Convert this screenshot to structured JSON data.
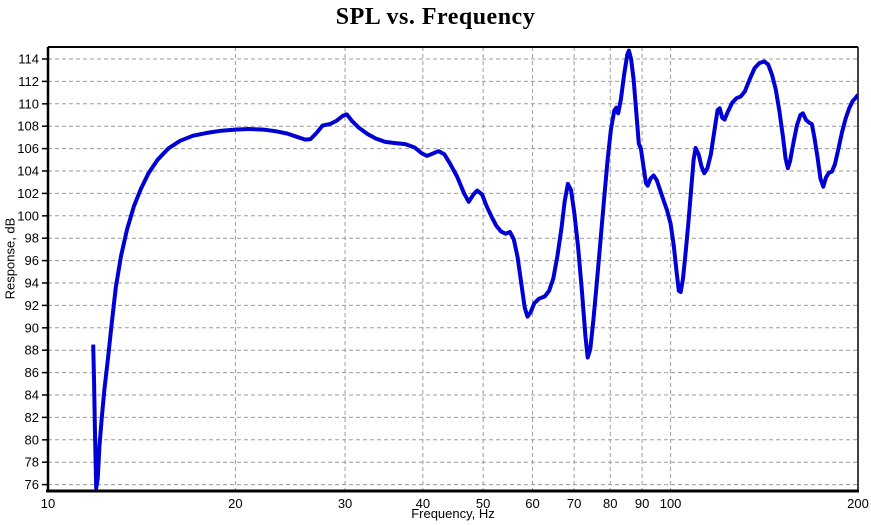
{
  "chart_data": {
    "type": "line",
    "title": "SPL vs. Frequency",
    "xlabel": "Frequency, Hz",
    "ylabel": "Response, dB",
    "x_scale": "log",
    "xlim": [
      10,
      200
    ],
    "ylim": [
      75.5,
      115.1
    ],
    "grid": "dashed",
    "grid_color": "#9c9c9c",
    "axis_color": "#000000",
    "background_color": "#ffffff",
    "legend": "none",
    "x_ticks": [
      10,
      20,
      30,
      40,
      50,
      60,
      70,
      80,
      90,
      100,
      200
    ],
    "x_tick_labels": [
      "10",
      "20",
      "30",
      "40",
      "50",
      "60",
      "70",
      "80",
      "90",
      "100",
      "200"
    ],
    "x_gridlines": [
      20,
      30,
      40,
      50,
      60,
      70,
      80,
      90,
      100,
      200
    ],
    "y_ticks": [
      76,
      78,
      80,
      82,
      84,
      86,
      88,
      90,
      92,
      94,
      96,
      98,
      100,
      102,
      104,
      106,
      108,
      110,
      112,
      114
    ],
    "series": [
      {
        "name": "SPL",
        "color": "#0000d4",
        "points": [
          [
            11.82,
            88.5
          ],
          [
            11.86,
            85.0
          ],
          [
            11.9,
            80.5
          ],
          [
            11.95,
            75.7
          ],
          [
            12.02,
            76.5
          ],
          [
            12.1,
            79.5
          ],
          [
            12.2,
            82.0
          ],
          [
            12.32,
            84.5
          ],
          [
            12.48,
            87.2
          ],
          [
            12.65,
            90.3
          ],
          [
            12.85,
            93.6
          ],
          [
            13.1,
            96.4
          ],
          [
            13.4,
            98.8
          ],
          [
            13.75,
            100.9
          ],
          [
            14.1,
            102.4
          ],
          [
            14.5,
            103.8
          ],
          [
            15.0,
            105.0
          ],
          [
            15.6,
            106.0
          ],
          [
            16.3,
            106.7
          ],
          [
            17.1,
            107.15
          ],
          [
            18.0,
            107.4
          ],
          [
            19.0,
            107.6
          ],
          [
            20.0,
            107.7
          ],
          [
            21.0,
            107.75
          ],
          [
            22.2,
            107.7
          ],
          [
            23.2,
            107.55
          ],
          [
            24.2,
            107.35
          ],
          [
            25.1,
            107.05
          ],
          [
            25.9,
            106.8
          ],
          [
            26.4,
            106.85
          ],
          [
            27.0,
            107.4
          ],
          [
            27.6,
            108.05
          ],
          [
            28.4,
            108.2
          ],
          [
            29.1,
            108.5
          ],
          [
            29.8,
            108.95
          ],
          [
            30.2,
            109.05
          ],
          [
            30.8,
            108.45
          ],
          [
            31.6,
            107.85
          ],
          [
            32.6,
            107.3
          ],
          [
            33.6,
            106.9
          ],
          [
            34.8,
            106.6
          ],
          [
            36.0,
            106.5
          ],
          [
            37.5,
            106.4
          ],
          [
            38.8,
            106.1
          ],
          [
            39.8,
            105.6
          ],
          [
            40.6,
            105.35
          ],
          [
            41.5,
            105.55
          ],
          [
            42.4,
            105.78
          ],
          [
            43.3,
            105.5
          ],
          [
            44.2,
            104.7
          ],
          [
            45.4,
            103.5
          ],
          [
            46.6,
            102.0
          ],
          [
            47.4,
            101.25
          ],
          [
            48.3,
            101.95
          ],
          [
            48.9,
            102.25
          ],
          [
            49.8,
            101.9
          ],
          [
            50.7,
            100.8
          ],
          [
            51.6,
            99.9
          ],
          [
            52.5,
            99.1
          ],
          [
            53.4,
            98.6
          ],
          [
            54.3,
            98.4
          ],
          [
            55.2,
            98.55
          ],
          [
            56.0,
            97.9
          ],
          [
            56.8,
            96.3
          ],
          [
            57.6,
            93.9
          ],
          [
            58.3,
            91.8
          ],
          [
            58.9,
            91.0
          ],
          [
            59.6,
            91.4
          ],
          [
            60.4,
            92.2
          ],
          [
            61.5,
            92.6
          ],
          [
            62.8,
            92.8
          ],
          [
            63.8,
            93.3
          ],
          [
            64.8,
            94.4
          ],
          [
            65.8,
            96.4
          ],
          [
            66.8,
            98.9
          ],
          [
            67.6,
            101.3
          ],
          [
            68.4,
            102.85
          ],
          [
            69.2,
            102.3
          ],
          [
            70.0,
            100.4
          ],
          [
            71.0,
            97.3
          ],
          [
            72.0,
            93.4
          ],
          [
            73.0,
            89.2
          ],
          [
            73.6,
            87.35
          ],
          [
            74.3,
            88.1
          ],
          [
            75.2,
            90.8
          ],
          [
            76.2,
            94.3
          ],
          [
            77.2,
            97.9
          ],
          [
            78.2,
            101.5
          ],
          [
            79.2,
            104.9
          ],
          [
            80.2,
            107.7
          ],
          [
            81.2,
            109.4
          ],
          [
            81.8,
            109.65
          ],
          [
            82.4,
            109.15
          ],
          [
            83.2,
            110.4
          ],
          [
            84.2,
            112.6
          ],
          [
            85.2,
            114.4
          ],
          [
            85.7,
            114.75
          ],
          [
            86.4,
            114.0
          ],
          [
            87.2,
            112.2
          ],
          [
            88.2,
            108.9
          ],
          [
            88.9,
            106.45
          ],
          [
            89.6,
            106.0
          ],
          [
            90.4,
            104.5
          ],
          [
            91.3,
            102.9
          ],
          [
            91.9,
            102.7
          ],
          [
            92.9,
            103.35
          ],
          [
            93.9,
            103.6
          ],
          [
            95.0,
            103.2
          ],
          [
            96.2,
            102.3
          ],
          [
            97.4,
            101.4
          ],
          [
            98.7,
            100.5
          ],
          [
            100.0,
            99.3
          ],
          [
            101.2,
            97.3
          ],
          [
            102.3,
            94.9
          ],
          [
            103.1,
            93.3
          ],
          [
            103.8,
            93.2
          ],
          [
            104.7,
            94.4
          ],
          [
            105.7,
            96.7
          ],
          [
            106.8,
            99.4
          ],
          [
            107.9,
            102.3
          ],
          [
            108.9,
            105.0
          ],
          [
            109.7,
            106.05
          ],
          [
            110.9,
            105.5
          ],
          [
            112.1,
            104.4
          ],
          [
            113.3,
            103.8
          ],
          [
            114.6,
            104.25
          ],
          [
            116.1,
            105.5
          ],
          [
            117.6,
            107.6
          ],
          [
            119.0,
            109.45
          ],
          [
            119.9,
            109.6
          ],
          [
            121.1,
            108.75
          ],
          [
            122.1,
            108.6
          ],
          [
            123.6,
            109.3
          ],
          [
            125.6,
            110.1
          ],
          [
            127.6,
            110.5
          ],
          [
            129.6,
            110.65
          ],
          [
            131.6,
            111.1
          ],
          [
            134.0,
            112.2
          ],
          [
            136.5,
            113.2
          ],
          [
            139.0,
            113.65
          ],
          [
            141.5,
            113.78
          ],
          [
            143.5,
            113.5
          ],
          [
            145.5,
            112.6
          ],
          [
            147.5,
            111.3
          ],
          [
            149.5,
            109.4
          ],
          [
            151.5,
            107.1
          ],
          [
            153.0,
            105.1
          ],
          [
            154.3,
            104.25
          ],
          [
            155.6,
            104.9
          ],
          [
            157.6,
            106.6
          ],
          [
            159.6,
            108.1
          ],
          [
            161.6,
            109.0
          ],
          [
            163.1,
            109.15
          ],
          [
            165.1,
            108.55
          ],
          [
            167.1,
            108.3
          ],
          [
            168.6,
            108.2
          ],
          [
            170.1,
            107.1
          ],
          [
            172.1,
            105.3
          ],
          [
            174.1,
            103.3
          ],
          [
            175.9,
            102.6
          ],
          [
            177.6,
            103.4
          ],
          [
            179.6,
            103.85
          ],
          [
            181.6,
            103.95
          ],
          [
            183.6,
            104.6
          ],
          [
            186.1,
            106.0
          ],
          [
            188.6,
            107.5
          ],
          [
            191.1,
            108.7
          ],
          [
            193.6,
            109.6
          ],
          [
            196.1,
            110.25
          ],
          [
            198.0,
            110.5
          ],
          [
            200.0,
            110.8
          ]
        ]
      }
    ]
  }
}
